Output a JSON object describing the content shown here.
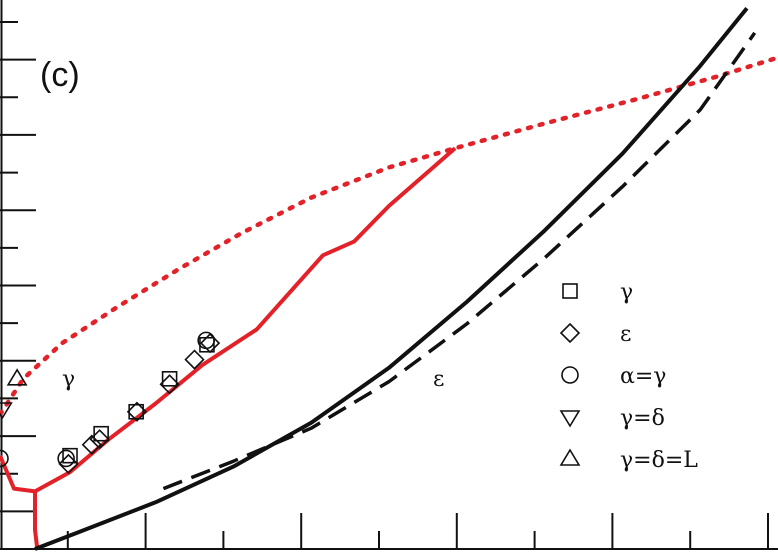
{
  "chart_data": {
    "type": "line",
    "panel_label": "(c)",
    "title": "",
    "xlabel": "",
    "ylabel": "",
    "xlim": [
      0,
      1
    ],
    "ylim": [
      0,
      1
    ],
    "colors": {
      "red": "#e32128",
      "black": "#111111"
    },
    "region_labels": [
      "γ",
      "ε"
    ],
    "series": [
      {
        "style": "red-solid",
        "color": "#e32128",
        "x": [
          0.0,
          0.018,
          0.045,
          0.09,
          0.14,
          0.2,
          0.26,
          0.33,
          0.415,
          0.455,
          0.5,
          0.585
        ],
        "y": [
          0.17,
          0.11,
          0.105,
          0.14,
          0.2,
          0.265,
          0.335,
          0.4,
          0.535,
          0.56,
          0.625,
          0.73
        ]
      },
      {
        "style": "red-solid",
        "color": "#e32128",
        "x": [
          0.045,
          0.045,
          0.048
        ],
        "y": [
          0.105,
          0.035,
          0.0
        ]
      },
      {
        "style": "red-dotted",
        "color": "#e32128",
        "x": [
          0.0,
          0.03,
          0.08,
          0.15,
          0.23,
          0.31,
          0.4,
          0.5,
          0.585,
          0.7,
          0.82,
          0.92,
          1.0
        ],
        "y": [
          0.245,
          0.31,
          0.375,
          0.44,
          0.51,
          0.575,
          0.64,
          0.695,
          0.73,
          0.775,
          0.82,
          0.86,
          0.895
        ]
      },
      {
        "style": "black-solid",
        "color": "#111111",
        "x": [
          0.045,
          0.1,
          0.2,
          0.3,
          0.4,
          0.5,
          0.6,
          0.7,
          0.8,
          0.9,
          0.96
        ],
        "y": [
          0.0,
          0.03,
          0.085,
          0.15,
          0.23,
          0.33,
          0.45,
          0.58,
          0.72,
          0.88,
          0.985
        ]
      },
      {
        "style": "black-dashed",
        "color": "#111111",
        "x": [
          0.21,
          0.3,
          0.4,
          0.5,
          0.6,
          0.7,
          0.8,
          0.9,
          0.97
        ],
        "y": [
          0.11,
          0.16,
          0.22,
          0.305,
          0.41,
          0.53,
          0.66,
          0.8,
          0.94
        ]
      }
    ],
    "points": [
      {
        "marker": "square",
        "x": [
          0.09,
          0.13,
          0.175,
          0.218,
          0.266
        ],
        "y": [
          0.17,
          0.21,
          0.25,
          0.31,
          0.372
        ]
      },
      {
        "marker": "diamond",
        "x": [
          0.088,
          0.118,
          0.128,
          0.176,
          0.218,
          0.25,
          0.27
        ],
        "y": [
          0.155,
          0.19,
          0.2,
          0.25,
          0.3,
          0.345,
          0.375
        ]
      },
      {
        "marker": "circle",
        "x": [
          0.0,
          0.085,
          0.265
        ],
        "y": [
          0.165,
          0.165,
          0.38
        ]
      },
      {
        "marker": "triangle-down",
        "x": [
          0.003
        ],
        "y": [
          0.255
        ]
      },
      {
        "marker": "triangle-up",
        "x": [
          0.022
        ],
        "y": [
          0.31
        ]
      }
    ],
    "legend": {
      "placement": "right",
      "entries": [
        {
          "marker": "square",
          "label": "γ"
        },
        {
          "marker": "diamond",
          "label": "ε"
        },
        {
          "marker": "circle",
          "label": "α=γ"
        },
        {
          "marker": "triangle-down",
          "label": "γ=δ"
        },
        {
          "marker": "triangle-up",
          "label": "γ=δ=L"
        }
      ]
    },
    "ticks": {
      "y_left_count": 14,
      "x_bottom_count": 10
    }
  }
}
